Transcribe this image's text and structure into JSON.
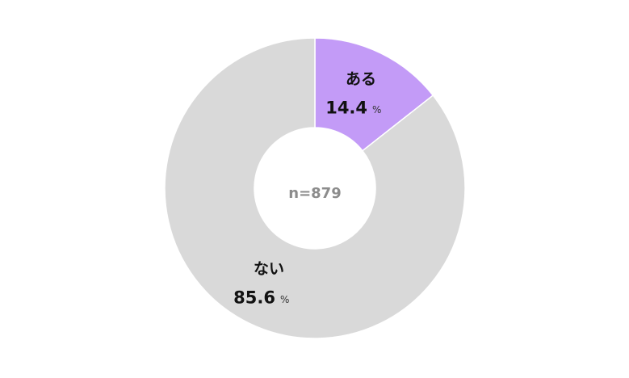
{
  "chart_data": {
    "type": "donut",
    "center_label": "n=879",
    "unit": "%",
    "categories": [
      "ある",
      "ない"
    ],
    "values": [
      14.4,
      85.6
    ],
    "colors": [
      "#c39bf7",
      "#d9d9d9"
    ]
  }
}
